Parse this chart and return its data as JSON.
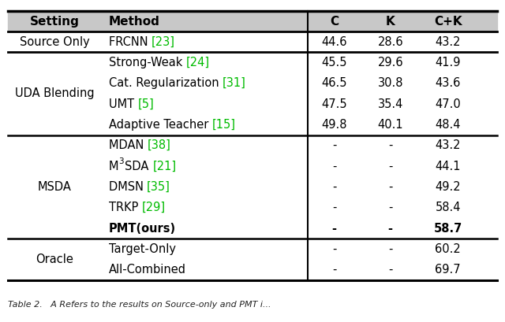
{
  "headers": [
    "Setting",
    "Method",
    "C",
    "K",
    "C+K"
  ],
  "rows": [
    {
      "setting": "Source Only",
      "group": 0,
      "method_base": "FRCNN ",
      "method_ref": "[23]",
      "bold": false,
      "C": "44.6",
      "K": "28.6",
      "CK": "43.2"
    },
    {
      "setting": "UDA Blending",
      "group": 1,
      "method_base": "Strong-Weak ",
      "method_ref": "[24]",
      "bold": false,
      "C": "45.5",
      "K": "29.6",
      "CK": "41.9"
    },
    {
      "setting": "UDA Blending",
      "group": 1,
      "method_base": "Cat. Regularization ",
      "method_ref": "[31]",
      "bold": false,
      "C": "46.5",
      "K": "30.8",
      "CK": "43.6"
    },
    {
      "setting": "UDA Blending",
      "group": 1,
      "method_base": "UMT ",
      "method_ref": "[5]",
      "bold": false,
      "C": "47.5",
      "K": "35.4",
      "CK": "47.0"
    },
    {
      "setting": "UDA Blending",
      "group": 1,
      "method_base": "Adaptive Teacher ",
      "method_ref": "[15]",
      "bold": false,
      "C": "49.8",
      "K": "40.1",
      "CK": "48.4"
    },
    {
      "setting": "MSDA",
      "group": 2,
      "method_base": "MDAN ",
      "method_ref": "[38]",
      "bold": false,
      "C": "-",
      "K": "-",
      "CK": "43.2"
    },
    {
      "setting": "MSDA",
      "group": 2,
      "method_base": "M3SDA ",
      "method_ref": "[21]",
      "bold": false,
      "C": "-",
      "K": "-",
      "CK": "44.1"
    },
    {
      "setting": "MSDA",
      "group": 2,
      "method_base": "DMSN ",
      "method_ref": "[35]",
      "bold": false,
      "C": "-",
      "K": "-",
      "CK": "49.2"
    },
    {
      "setting": "MSDA",
      "group": 2,
      "method_base": "TRKP ",
      "method_ref": "[29]",
      "bold": false,
      "C": "-",
      "K": "-",
      "CK": "58.4"
    },
    {
      "setting": "MSDA",
      "group": 2,
      "method_base": "PMT(ours)",
      "method_ref": "",
      "bold": true,
      "C": "-",
      "K": "-",
      "CK": "58.7"
    },
    {
      "setting": "Oracle",
      "group": 3,
      "method_base": "Target-Only",
      "method_ref": "",
      "bold": false,
      "C": "-",
      "K": "-",
      "CK": "60.2"
    },
    {
      "setting": "Oracle",
      "group": 3,
      "method_base": "All-Combined",
      "method_ref": "",
      "bold": false,
      "C": "-",
      "K": "-",
      "CK": "69.7"
    }
  ],
  "group_sep_after": [
    0,
    4,
    9
  ],
  "ref_color": "#00bb00",
  "header_bg": "#c8c8c8",
  "font_size": 10.5,
  "caption": "Table 2.   A Refers to the results on Source-only and PMT i..."
}
